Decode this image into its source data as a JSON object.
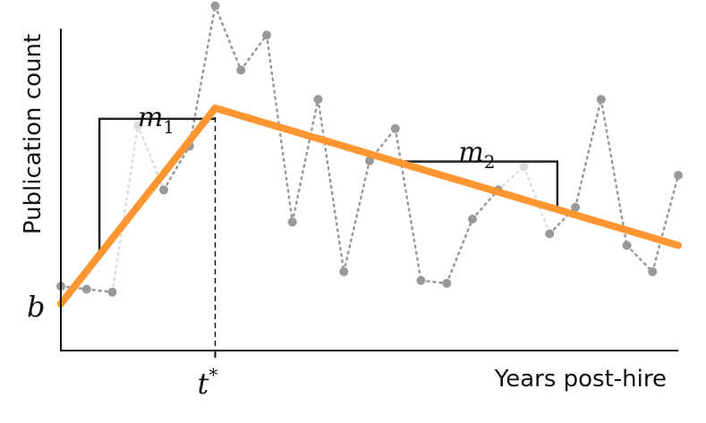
{
  "chart_data": {
    "type": "line",
    "xlabel": "Years post-hire",
    "ylabel": "Publication count",
    "xlim": [
      0,
      24
    ],
    "ylim": [
      0,
      12
    ],
    "grid": false,
    "series": [
      {
        "style": "dotted-markers",
        "color": "#999999",
        "points": [
          {
            "x": 0,
            "y": 2.2
          },
          {
            "x": 1,
            "y": 2.1
          },
          {
            "x": 2,
            "y": 2.0
          },
          {
            "x": 3,
            "y": 7.7,
            "faded": true
          },
          {
            "x": 4,
            "y": 5.5
          },
          {
            "x": 5,
            "y": 7.0
          },
          {
            "x": 6,
            "y": 11.8
          },
          {
            "x": 7,
            "y": 9.6
          },
          {
            "x": 8,
            "y": 10.8
          },
          {
            "x": 9,
            "y": 4.4
          },
          {
            "x": 10,
            "y": 8.6
          },
          {
            "x": 11,
            "y": 2.7
          },
          {
            "x": 12,
            "y": 6.5
          },
          {
            "x": 13,
            "y": 7.6
          },
          {
            "x": 14,
            "y": 2.4
          },
          {
            "x": 15,
            "y": 2.3
          },
          {
            "x": 16,
            "y": 4.5
          },
          {
            "x": 17,
            "y": 5.5
          },
          {
            "x": 18,
            "y": 6.3,
            "faded": true
          },
          {
            "x": 19,
            "y": 4.0
          },
          {
            "x": 20,
            "y": 4.9
          },
          {
            "x": 21,
            "y": 8.6
          },
          {
            "x": 22,
            "y": 3.6
          },
          {
            "x": 23,
            "y": 2.7
          },
          {
            "x": 24,
            "y": 6.0
          }
        ]
      },
      {
        "style": "solid-thick",
        "color": "#ff9632",
        "points": [
          {
            "x": 0,
            "y": 1.6
          },
          {
            "x": 6,
            "y": 8.3
          },
          {
            "x": 24,
            "y": 3.6
          }
        ]
      }
    ],
    "annotations": {
      "intercept_label": "b",
      "breakpoint_label": "t",
      "breakpoint_superscript": "*",
      "breakpoint_x": 6,
      "slope1": {
        "label": "m",
        "subscript": "1",
        "x_start": 1.5,
        "x_end": 6
      },
      "slope2": {
        "label": "m",
        "subscript": "2",
        "x_start": 13,
        "x_end": 19.3
      }
    }
  }
}
